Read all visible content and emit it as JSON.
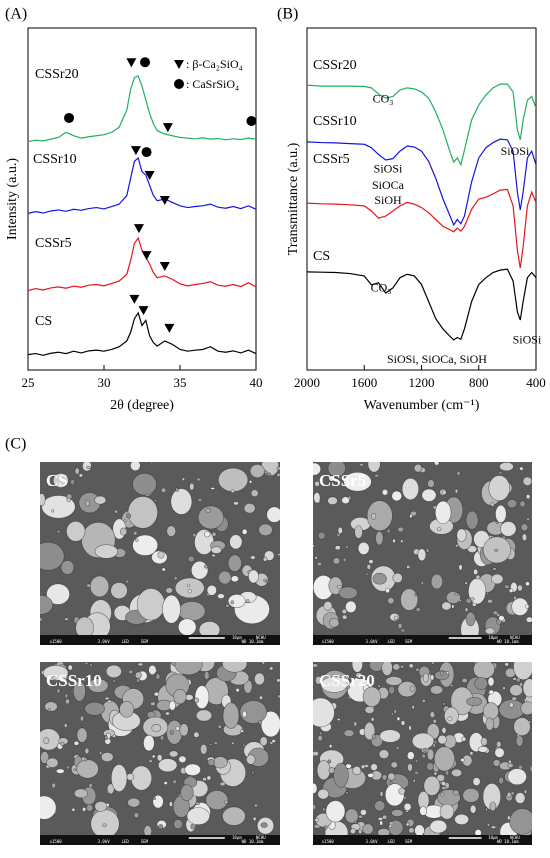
{
  "panel_labels": [
    "(A)",
    "(B)",
    "(C)"
  ],
  "chart_data": [
    {
      "type": "line",
      "xlabel": "2θ (degree)",
      "ylabel": "Intensity (a.u.)",
      "xlim": [
        25,
        40
      ],
      "xticks": [
        25,
        30,
        35,
        40
      ],
      "ylim": [
        0,
        100
      ],
      "x": [
        25,
        25.5,
        26,
        26.5,
        27,
        27.5,
        28,
        28.5,
        29,
        29.5,
        30,
        30.5,
        31,
        31.5,
        31.75,
        32,
        32.25,
        32.5,
        32.75,
        33,
        33.25,
        33.5,
        34,
        34.5,
        35,
        35.5,
        36,
        36.5,
        37,
        37.5,
        38,
        38.5,
        39,
        39.5,
        40
      ],
      "series": [
        {
          "name": "CS",
          "color": "#000000",
          "values": [
            4.5,
            4.8,
            4.3,
            4.9,
            5.2,
            4.8,
            5.5,
            5.0,
            5.6,
            5.8,
            5.5,
            6.0,
            6.8,
            8.5,
            11,
            15,
            16.7,
            13,
            14.5,
            10,
            8,
            7,
            8.5,
            7.5,
            6,
            5.5,
            5.8,
            6,
            6.8,
            5.5,
            5.2,
            5.6,
            5,
            5.8,
            4.8
          ]
        },
        {
          "name": "CSSr5",
          "color": "#e8141c",
          "values": [
            23.2,
            23.8,
            23.4,
            24,
            24.3,
            23.9,
            24.5,
            24.2,
            24.8,
            25,
            24.6,
            25.3,
            26,
            28,
            32,
            37,
            38.6,
            35,
            33,
            31,
            28.5,
            27,
            27.5,
            26.5,
            25.2,
            24.6,
            25,
            25.3,
            25.8,
            24.8,
            24.5,
            25,
            24.4,
            25.5,
            24.3
          ]
        },
        {
          "name": "CSSr10",
          "color": "#1414e0",
          "values": [
            45.8,
            46.3,
            45.9,
            46.5,
            46.8,
            46.4,
            47,
            46.7,
            47.2,
            47.5,
            47.1,
            47.8,
            48.5,
            51,
            56,
            61,
            62,
            58,
            57,
            54,
            51,
            49.5,
            50,
            49,
            48,
            47.5,
            47.8,
            48,
            48.5,
            47.6,
            47.3,
            47.8,
            47.2,
            48,
            47
          ]
        },
        {
          "name": "CSSr20",
          "color": "#22b060",
          "values": [
            66.8,
            67.2,
            67,
            67.5,
            68,
            69.5,
            68.5,
            67.8,
            68.2,
            68.5,
            68.8,
            69.5,
            71,
            76,
            82,
            85.5,
            86,
            83,
            79,
            75,
            72,
            70,
            69,
            68.5,
            68,
            67.8,
            67.6,
            67.9,
            67.5,
            67.7,
            67.3,
            67.6,
            67.4,
            67.8,
            67.5
          ]
        }
      ],
      "legend": [
        {
          "symbol": "triangle",
          "label": ": β-Ca₂SiO₄"
        },
        {
          "symbol": "circle",
          "label": ": CaSrSiO₄"
        }
      ],
      "markers": [
        {
          "symbol": "triangle",
          "x": 31.8,
          "y": 90
        },
        {
          "symbol": "circle",
          "x": 32.7,
          "y": 90
        },
        {
          "symbol": "circle",
          "x": 27.7,
          "y": 73.7
        },
        {
          "symbol": "triangle",
          "x": 34.2,
          "y": 71
        },
        {
          "symbol": "circle",
          "x": 39.7,
          "y": 72.8
        },
        {
          "symbol": "triangle",
          "x": 32.1,
          "y": 64.3
        },
        {
          "symbol": "circle",
          "x": 32.8,
          "y": 63.7
        },
        {
          "symbol": "triangle",
          "x": 33,
          "y": 57
        },
        {
          "symbol": "triangle",
          "x": 34,
          "y": 49.7
        },
        {
          "symbol": "triangle",
          "x": 32.3,
          "y": 41.5
        },
        {
          "symbol": "triangle",
          "x": 32.8,
          "y": 33.6
        },
        {
          "symbol": "triangle",
          "x": 34,
          "y": 30.4
        },
        {
          "symbol": "triangle",
          "x": 32,
          "y": 20.8
        },
        {
          "symbol": "triangle",
          "x": 32.6,
          "y": 17.5
        },
        {
          "symbol": "triangle",
          "x": 34.3,
          "y": 12.3
        }
      ]
    },
    {
      "type": "line",
      "xlabel": "Wavenumber (cm⁻¹)",
      "ylabel": "Transmittance (a.u.)",
      "xlim": [
        2000,
        400
      ],
      "xticks": [
        2000,
        1600,
        1200,
        800,
        400
      ],
      "ylim": [
        0,
        100
      ],
      "x": [
        2000,
        1900,
        1800,
        1700,
        1600,
        1550,
        1500,
        1450,
        1400,
        1350,
        1300,
        1250,
        1200,
        1150,
        1100,
        1050,
        1000,
        975,
        950,
        925,
        900,
        850,
        800,
        750,
        700,
        650,
        600,
        560,
        530,
        510,
        490,
        460,
        430,
        400
      ],
      "series": [
        {
          "name": "CS",
          "color": "#000000",
          "values": [
            28.7,
            28.6,
            28.5,
            28.2,
            27.5,
            24.9,
            25.5,
            22.5,
            24,
            27,
            28,
            27.5,
            25,
            20,
            15,
            12,
            9.8,
            8.8,
            9.5,
            9,
            12,
            20,
            25,
            27,
            28.5,
            29.2,
            29.5,
            26,
            17,
            14.6,
            20,
            27,
            28.5,
            27
          ]
        },
        {
          "name": "CSSr5",
          "color": "#e8141c",
          "values": [
            48.8,
            48.6,
            48.5,
            48.3,
            48,
            46.5,
            44.4,
            45,
            46.5,
            48,
            49,
            48.5,
            47.5,
            46,
            44,
            42,
            41,
            40.4,
            41.5,
            40.6,
            42,
            47,
            50,
            50.5,
            51.5,
            52.6,
            52.8,
            48,
            35,
            29.8,
            36,
            48,
            52,
            49
          ]
        },
        {
          "name": "CSSr10",
          "color": "#1414e0",
          "values": [
            66.7,
            66.5,
            66.4,
            66.2,
            66,
            65,
            63,
            61.4,
            61.8,
            64,
            65.5,
            65.2,
            64,
            61,
            56,
            50,
            45,
            42.4,
            44,
            42.8,
            45,
            55,
            62,
            65,
            66.5,
            67.5,
            67.3,
            64,
            52,
            46.8,
            52,
            62,
            64,
            60
          ]
        },
        {
          "name": "CSSr20",
          "color": "#22b060",
          "values": [
            83.3,
            83,
            83,
            83,
            82.9,
            82.5,
            80.7,
            79.5,
            80,
            81.9,
            82.5,
            82.2,
            81.3,
            79.5,
            75.4,
            70.2,
            63.7,
            60.8,
            62,
            60,
            64.3,
            73.1,
            77.5,
            80.4,
            82.5,
            83.6,
            83.6,
            81.3,
            70.2,
            67.3,
            73.1,
            78.9,
            80,
            76.6
          ]
        }
      ],
      "annotations": [
        {
          "text": "CO₃",
          "x": 1469,
          "y": 79
        },
        {
          "text": "SiOSi",
          "x": 1434,
          "y": 58.5
        },
        {
          "text": "SiOCa",
          "x": 1434,
          "y": 53.8
        },
        {
          "text": "SiOH",
          "x": 1434,
          "y": 49.4
        },
        {
          "text": "SiOSi",
          "x": 547,
          "y": 63.7
        },
        {
          "text": "CO₃",
          "x": 1483,
          "y": 23.7
        },
        {
          "text": "SiOSi",
          "x": 463,
          "y": 8.5
        },
        {
          "text": "SiOSi, SiOCa, SiOH",
          "x": 1092,
          "y": 2.9
        }
      ]
    }
  ],
  "sem": {
    "panels": [
      {
        "label": "CS"
      },
      {
        "label": "CSSr5"
      },
      {
        "label": "CSSr10"
      },
      {
        "label": "CSSr20"
      }
    ],
    "info": {
      "magnification": "x1500",
      "voltage": "3.0kV",
      "detector": "LED",
      "mode": "SEM",
      "scale": "10μm",
      "lab": "NCHU",
      "wd": "WD 10.1mm"
    }
  }
}
